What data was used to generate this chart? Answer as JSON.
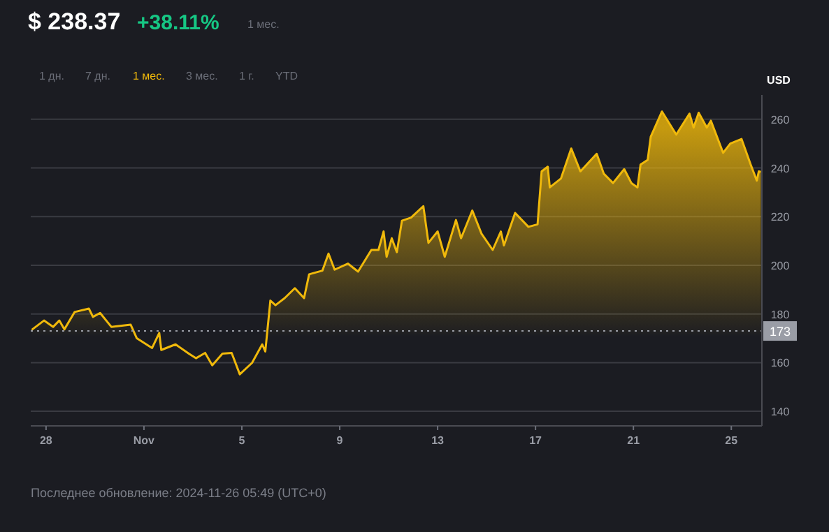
{
  "chart_data": {
    "type": "area",
    "title": "$ 238.37",
    "subtitle": "+38.11%",
    "ylabel": "USD",
    "annotations": [
      "1 мес.",
      "1 дн.",
      "7 дн.",
      "1 мес.",
      "3 мес.",
      "1 г.",
      "YTD",
      "Последнее обновление: 2024-11-26 05:49 (UTC+0)"
    ],
    "x": [
      "2024-10-27T10:00",
      "2024-10-27T22:00",
      "2024-10-28T07:00",
      "2024-10-28T13:00",
      "2024-10-28T18:00",
      "2024-10-29T04:00",
      "2024-10-29T18:00",
      "2024-10-29T22:00",
      "2024-10-30T05:00",
      "2024-10-30T16:00",
      "2024-10-31T11:00",
      "2024-10-31T17:00",
      "2024-11-01T08:00",
      "2024-11-01T15:00",
      "2024-11-01T17:00",
      "2024-11-02T07:00",
      "2024-11-02T20:00",
      "2024-11-03T03:00",
      "2024-11-03T12:00",
      "2024-11-03T19:00",
      "2024-11-04T05:00",
      "2024-11-04T14:00",
      "2024-11-04T22:00",
      "2024-11-05T10:00",
      "2024-11-05T20:00",
      "2024-11-05T23:00",
      "2024-11-06T04:00",
      "2024-11-06T09:00",
      "2024-11-06T18:00",
      "2024-11-07T04:00",
      "2024-11-07T13:00",
      "2024-11-07T18:00",
      "2024-11-08T07:00",
      "2024-11-08T13:00",
      "2024-11-08T19:00",
      "2024-11-09T08:00",
      "2024-11-09T18:00",
      "2024-11-10T07:00",
      "2024-11-10T14:00",
      "2024-11-10T19:00",
      "2024-11-10T22:00",
      "2024-11-11T03:00",
      "2024-11-11T08:00",
      "2024-11-11T13:00",
      "2024-11-11T22:00",
      "2024-11-12T10:00",
      "2024-11-12T15:00",
      "2024-11-13T00:00",
      "2024-11-13T07:00",
      "2024-11-13T18:00",
      "2024-11-13T23:00",
      "2024-11-14T10:00",
      "2024-11-14T19:00",
      "2024-11-15T06:00",
      "2024-11-15T14:00",
      "2024-11-15T17:00",
      "2024-11-16T04:00",
      "2024-11-16T17:00",
      "2024-11-17T02:00",
      "2024-11-17T06:00",
      "2024-11-17T12:00",
      "2024-11-17T14:00",
      "2024-11-18T01:00",
      "2024-11-18T11:00",
      "2024-11-18T20:00",
      "2024-11-19T12:00",
      "2024-11-19T19:00",
      "2024-11-20T04:00",
      "2024-11-20T15:00",
      "2024-11-20T22:00",
      "2024-11-21T04:00",
      "2024-11-21T07:00",
      "2024-11-21T14:00",
      "2024-11-21T17:00",
      "2024-11-22T04:00",
      "2024-11-22T18:00",
      "2024-11-23T07:00",
      "2024-11-23T11:00",
      "2024-11-23T16:00",
      "2024-11-24T00:00",
      "2024-11-24T04:00",
      "2024-11-24T16:00",
      "2024-11-24T23:00",
      "2024-11-25T10:00",
      "2024-11-25T19:00",
      "2024-11-26T01:00",
      "2024-11-26T03:00",
      "2024-11-26T05:00"
    ],
    "series": [
      {
        "color": "#f0b90b",
        "values": [
          173.5,
          177.3,
          174.7,
          177.3,
          173.7,
          180.8,
          182.2,
          178.8,
          180.4,
          174.7,
          175.6,
          170,
          166,
          172.2,
          165.2,
          167.5,
          163.7,
          161.8,
          164,
          158.9,
          163.7,
          164,
          155.2,
          159.9,
          167.5,
          164.6,
          185.5,
          183.6,
          186.5,
          190.6,
          186.5,
          196.3,
          197.8,
          204.8,
          198.2,
          200.7,
          197.4,
          206.3,
          206.3,
          213.9,
          203.5,
          211.1,
          205.4,
          218.3,
          219.6,
          224.3,
          209.2,
          213.9,
          203.5,
          218.6,
          211.1,
          222.5,
          213,
          206.3,
          213.9,
          208.2,
          221.5,
          215.8,
          216.8,
          238.6,
          240.5,
          232,
          235.7,
          248,
          238.6,
          245.8,
          237.6,
          233.8,
          239.5,
          233.8,
          232,
          241.4,
          243.3,
          252.8,
          263.2,
          253.7,
          262.3,
          256.6,
          262.7,
          256.6,
          259.4,
          246.2,
          250,
          251.9,
          241.4,
          234.8,
          238.6,
          238.4
        ]
      }
    ],
    "xlim": [
      "2024-10-27T09:00",
      "2024-11-26T06:00"
    ],
    "xticks": [
      {
        "value": "2024-10-28",
        "label": "28"
      },
      {
        "value": "2024-11-01",
        "label": "Nov"
      },
      {
        "value": "2024-11-05",
        "label": "5"
      },
      {
        "value": "2024-11-09",
        "label": "9"
      },
      {
        "value": "2024-11-13",
        "label": "13"
      },
      {
        "value": "2024-11-17",
        "label": "17"
      },
      {
        "value": "2024-11-21",
        "label": "21"
      },
      {
        "value": "2024-11-25",
        "label": "25"
      }
    ],
    "ylim": [
      134,
      270
    ],
    "yticks": [
      140,
      160,
      180,
      200,
      220,
      240,
      260
    ],
    "grid": "y",
    "ref_lines": [
      {
        "axis": "y",
        "value": 173,
        "label": "173",
        "color": "#9a9da6",
        "line_style": "dotted"
      }
    ]
  }
}
